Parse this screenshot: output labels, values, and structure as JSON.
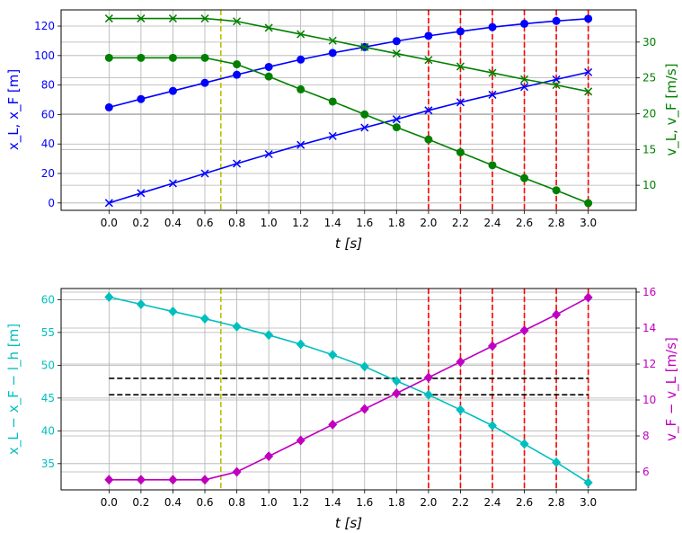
{
  "chart_data": [
    {
      "type": "line",
      "x": [
        0.0,
        0.2,
        0.4,
        0.6,
        0.8,
        1.0,
        1.2,
        1.4,
        1.6,
        1.8,
        2.0,
        2.2,
        2.4,
        2.6,
        2.8,
        3.0
      ],
      "xlim": [
        -0.3,
        3.3
      ],
      "xticks": [
        "0.0",
        "0.2",
        "0.4",
        "0.6",
        "0.8",
        "1.0",
        "1.2",
        "1.4",
        "1.6",
        "1.8",
        "2.0",
        "2.2",
        "2.4",
        "2.6",
        "2.8",
        "3.0"
      ],
      "xlabel": "t [s]",
      "grid": true,
      "y_left": {
        "label": "x_L, x_F [m]",
        "color": "#0000ff",
        "lim": [
          -5,
          131
        ],
        "ticks": [
          "0",
          "20",
          "40",
          "60",
          "80",
          "100",
          "120"
        ]
      },
      "y_right": {
        "label": "v_L, v_F [m/s]",
        "color": "#008000",
        "lim": [
          6.5,
          34.5
        ],
        "ticks": [
          "10",
          "15",
          "20",
          "25",
          "30"
        ]
      },
      "series": [
        {
          "axis": "left",
          "color": "#0000ff",
          "marker": "circle",
          "values": [
            64.9,
            70.5,
            76.0,
            81.5,
            87.0,
            92.3,
            97.3,
            101.8,
            105.8,
            109.8,
            113.4,
            116.4,
            119.3,
            121.6,
            123.5,
            125.0
          ]
        },
        {
          "axis": "left",
          "color": "#0000ff",
          "marker": "x",
          "values": [
            0.0,
            6.7,
            13.3,
            20.0,
            26.7,
            33.1,
            39.4,
            45.4,
            51.1,
            56.8,
            62.8,
            68.3,
            73.4,
            78.7,
            83.8,
            88.7
          ]
        },
        {
          "axis": "right",
          "color": "#008000",
          "marker": "circle",
          "values": [
            27.8,
            27.8,
            27.8,
            27.8,
            26.9,
            25.2,
            23.4,
            21.7,
            19.9,
            18.1,
            16.4,
            14.6,
            12.8,
            11.0,
            9.3,
            7.5
          ]
        },
        {
          "axis": "right",
          "color": "#008000",
          "marker": "x",
          "values": [
            33.3,
            33.3,
            33.3,
            33.3,
            32.9,
            32.0,
            31.1,
            30.2,
            29.3,
            28.4,
            27.5,
            26.6,
            25.7,
            24.8,
            24.0,
            23.1
          ]
        }
      ],
      "vlines": [
        {
          "x": 0.7,
          "color": "#bfbf00"
        },
        {
          "x": 2.0,
          "color": "#ff0000"
        },
        {
          "x": 2.2,
          "color": "#ff0000"
        },
        {
          "x": 2.4,
          "color": "#ff0000"
        },
        {
          "x": 2.6,
          "color": "#ff0000"
        },
        {
          "x": 2.8,
          "color": "#ff0000"
        },
        {
          "x": 3.0,
          "color": "#ff0000"
        }
      ],
      "hlines": []
    },
    {
      "type": "line",
      "x": [
        0.0,
        0.2,
        0.4,
        0.6,
        0.8,
        1.0,
        1.2,
        1.4,
        1.6,
        1.8,
        2.0,
        2.2,
        2.4,
        2.6,
        2.8,
        3.0
      ],
      "xlim": [
        -0.3,
        3.3
      ],
      "xticks": [
        "0.0",
        "0.2",
        "0.4",
        "0.6",
        "0.8",
        "1.0",
        "1.2",
        "1.4",
        "1.6",
        "1.8",
        "2.0",
        "2.2",
        "2.4",
        "2.6",
        "2.8",
        "3.0"
      ],
      "xlabel": "t [s]",
      "grid": true,
      "y_left": {
        "label": "x_L − x_F − l_h [m]",
        "color": "#00bfbf",
        "lim": [
          31.0,
          61.7
        ],
        "ticks": [
          "35",
          "40",
          "45",
          "50",
          "55",
          "60"
        ]
      },
      "y_right": {
        "label": "v_F − v_L [m/s]",
        "color": "#bf00bf",
        "lim": [
          5.0,
          16.2
        ],
        "ticks": [
          "6",
          "8",
          "10",
          "12",
          "14",
          "16"
        ]
      },
      "series": [
        {
          "axis": "left",
          "color": "#00bfbf",
          "marker": "diamond",
          "values": [
            60.4,
            59.3,
            58.2,
            57.1,
            55.9,
            54.6,
            53.2,
            51.6,
            49.8,
            47.6,
            45.5,
            43.2,
            40.8,
            38.0,
            35.2,
            32.1
          ]
        },
        {
          "axis": "right",
          "color": "#bf00bf",
          "marker": "diamond",
          "values": [
            5.56,
            5.56,
            5.56,
            5.56,
            6.0,
            6.87,
            7.75,
            8.63,
            9.5,
            10.37,
            11.25,
            12.12,
            13.0,
            13.87,
            14.75,
            15.7
          ]
        }
      ],
      "vlines": [
        {
          "x": 0.7,
          "color": "#bfbf00"
        },
        {
          "x": 2.0,
          "color": "#ff0000"
        },
        {
          "x": 2.2,
          "color": "#ff0000"
        },
        {
          "x": 2.4,
          "color": "#ff0000"
        },
        {
          "x": 2.6,
          "color": "#ff0000"
        },
        {
          "x": 2.8,
          "color": "#ff0000"
        },
        {
          "x": 3.0,
          "color": "#ff0000"
        }
      ],
      "hlines": [
        {
          "y": 48.0,
          "axis": "left",
          "color": "#000000"
        },
        {
          "y": 45.5,
          "axis": "left",
          "color": "#000000"
        }
      ]
    }
  ]
}
